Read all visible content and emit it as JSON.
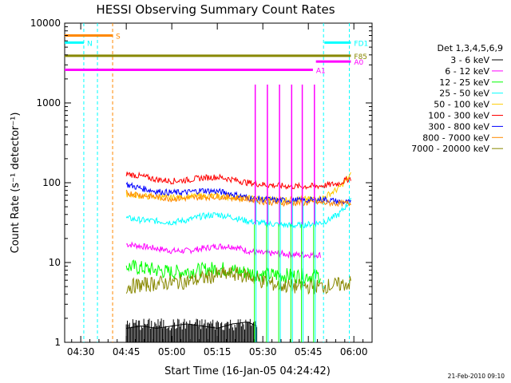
{
  "chart_data": {
    "type": "line",
    "title": "HESSI Observing Summary Count Rates",
    "xlabel": "Start Time (16-Jan-05 04:24:42)",
    "ylabel": "Count Rate (s⁻¹ detector⁻¹)",
    "x_ticks": [
      "04:30",
      "04:45",
      "05:00",
      "05:15",
      "05:30",
      "05:45",
      "06:00"
    ],
    "x_tick_minutes": [
      30,
      45,
      60,
      75,
      90,
      105,
      120
    ],
    "x_range_minutes": [
      24.7,
      126.0
    ],
    "y_scale": "log",
    "ylim": [
      1,
      10000
    ],
    "y_ticks": [
      1,
      10,
      100,
      1000,
      10000
    ],
    "legend_title": "Det 1,3,4,5,6,9",
    "legend_placement": "right",
    "series": [
      {
        "name": "3 - 6 keV",
        "color": "#000000",
        "x": [
          45,
          50,
          55,
          60,
          65,
          70,
          75,
          80,
          85,
          88
        ],
        "y": [
          1.5,
          1.6,
          1.5,
          1.6,
          1.7,
          1.6,
          1.5,
          1.7,
          1.8,
          1.6
        ]
      },
      {
        "name": "6 - 12 keV",
        "color": "#ff00ff",
        "x": [
          45,
          50,
          55,
          60,
          65,
          70,
          75,
          80,
          85,
          90,
          95,
          100,
          105,
          109
        ],
        "y": [
          17,
          16,
          15,
          14,
          14,
          15,
          16,
          16,
          14,
          13,
          13,
          12.5,
          12.5,
          12.5
        ]
      },
      {
        "name": "12 - 25 keV",
        "color": "#00ff00",
        "x": [
          45,
          50,
          55,
          60,
          65,
          70,
          75,
          80,
          85,
          90,
          95,
          100,
          105,
          109
        ],
        "y": [
          9,
          8.5,
          8,
          7.5,
          7.8,
          8,
          8.5,
          8,
          7.5,
          7,
          7,
          6.8,
          6.8,
          6.8
        ]
      },
      {
        "name": "25 - 50 keV",
        "color": "#00ffff",
        "x": [
          45,
          50,
          55,
          60,
          65,
          70,
          75,
          80,
          85,
          90,
          95,
          100,
          105,
          110,
          115,
          119
        ],
        "y": [
          36,
          34,
          33,
          32,
          34,
          38,
          40,
          37,
          33,
          31,
          30,
          29,
          30,
          32,
          40,
          60
        ]
      },
      {
        "name": "50 - 100 keV",
        "color": "#ffcc00",
        "x": [
          45,
          50,
          55,
          60,
          65,
          70,
          75,
          80,
          85,
          90,
          95,
          100,
          105,
          110,
          115,
          119
        ],
        "y": [
          72,
          68,
          66,
          65,
          67,
          68,
          68,
          66,
          64,
          62,
          62,
          62,
          62,
          65,
          85,
          125
        ]
      },
      {
        "name": "100 - 300 keV",
        "color": "#ff0000",
        "x": [
          45,
          50,
          55,
          60,
          65,
          70,
          75,
          80,
          85,
          90,
          95,
          100,
          105,
          110,
          115,
          119
        ],
        "y": [
          130,
          120,
          110,
          105,
          108,
          115,
          118,
          110,
          100,
          95,
          92,
          90,
          90,
          92,
          98,
          115
        ]
      },
      {
        "name": "300 - 800 keV",
        "color": "#0000ff",
        "x": [
          45,
          50,
          55,
          60,
          65,
          70,
          75,
          80,
          85,
          90,
          95,
          100,
          105,
          110,
          115,
          119
        ],
        "y": [
          95,
          85,
          78,
          75,
          76,
          80,
          78,
          72,
          65,
          62,
          60,
          60,
          60,
          62,
          58,
          56
        ]
      },
      {
        "name": "800 - 7000 keV",
        "color": "#ff8800",
        "x": [
          45,
          50,
          55,
          60,
          65,
          70,
          75,
          80,
          85,
          90,
          95,
          100,
          105,
          110,
          115,
          119
        ],
        "y": [
          75,
          70,
          66,
          63,
          64,
          66,
          67,
          65,
          62,
          58,
          56,
          56,
          56,
          56,
          55,
          55
        ]
      },
      {
        "name": "7000 - 20000 keV",
        "color": "#888800",
        "x": [
          45,
          50,
          55,
          60,
          65,
          70,
          75,
          80,
          85,
          90,
          95,
          100,
          105,
          109,
          114,
          119
        ],
        "y": [
          5,
          5.2,
          5.5,
          5.6,
          5.8,
          6.3,
          7,
          7.2,
          6.8,
          5.8,
          5.2,
          5,
          5,
          5,
          5.2,
          5.5
        ]
      }
    ],
    "spikes": {
      "x": [
        87.5,
        91.5,
        95.5,
        99.5,
        103,
        107
      ],
      "peak": 1700
    },
    "vertical_markers": [
      {
        "x": 31,
        "color": "#00ffff"
      },
      {
        "x": 35.5,
        "color": "#00ffff"
      },
      {
        "x": 40.5,
        "color": "#ff8800"
      },
      {
        "x": 110,
        "color": "#00ffff"
      },
      {
        "x": 118.5,
        "color": "#00ffff"
      }
    ],
    "flag_bars": [
      {
        "label": "S",
        "color": "#ff8800",
        "x0": 24.7,
        "x1": 40.5,
        "y": 7000
      },
      {
        "label": "N",
        "color": "#00ffff",
        "x0": 24.7,
        "x1": 31,
        "y": 5700
      },
      {
        "label": "FD1",
        "color": "#00ffff",
        "x0": 110.3,
        "x1": 119,
        "y": 5700
      },
      {
        "label": "F85",
        "color": "#888800",
        "x0": 24.7,
        "x1": 119,
        "y": 3900
      },
      {
        "label": "A0",
        "color": "#ff00ff",
        "x0": 107.5,
        "x1": 119,
        "y": 3300
      },
      {
        "label": "A1",
        "color": "#ff00ff",
        "x0": 24.7,
        "x1": 106.5,
        "y": 2600
      }
    ],
    "grid": false
  },
  "footer": {
    "timestamp": "21-Feb-2010 09:10"
  }
}
